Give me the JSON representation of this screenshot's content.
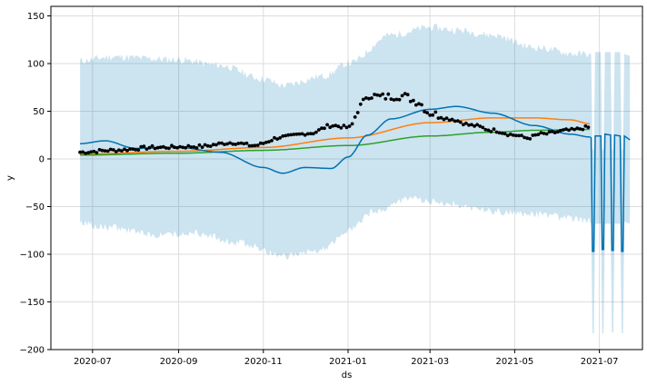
{
  "chart_data": {
    "type": "line",
    "title": "",
    "xlabel": "ds",
    "ylabel": "y",
    "grid": true,
    "legend": "none",
    "x_axis": {
      "start": "2020-06-01",
      "end": "2021-08-01",
      "ticks": [
        {
          "label": "2020-07",
          "date": "2020-07-01"
        },
        {
          "label": "2020-09",
          "date": "2020-09-01"
        },
        {
          "label": "2020-11",
          "date": "2020-11-01"
        },
        {
          "label": "2021-01",
          "date": "2021-01-01"
        },
        {
          "label": "2021-03",
          "date": "2021-03-01"
        },
        {
          "label": "2021-05",
          "date": "2021-05-01"
        },
        {
          "label": "2021-07",
          "date": "2021-07-01"
        }
      ]
    },
    "y_axis": {
      "ylim": [
        -200,
        160
      ],
      "ticks": [
        -200,
        -150,
        -100,
        -50,
        0,
        50,
        100,
        150
      ]
    },
    "colors": {
      "observed": "#000000",
      "yhat": "#0072B2",
      "band": "#0072B2",
      "orange_series": "#ff7f0e",
      "green_series": "#2ca02c",
      "grid": "#dddddd"
    },
    "observed_anchors": [
      {
        "date": "2020-06-22",
        "y": 7
      },
      {
        "date": "2020-07-15",
        "y": 9
      },
      {
        "date": "2020-08-15",
        "y": 12
      },
      {
        "date": "2020-09-15",
        "y": 13
      },
      {
        "date": "2020-10-10",
        "y": 17
      },
      {
        "date": "2020-10-25",
        "y": 14
      },
      {
        "date": "2020-11-15",
        "y": 23
      },
      {
        "date": "2020-12-05",
        "y": 27
      },
      {
        "date": "2020-12-20",
        "y": 35
      },
      {
        "date": "2021-01-02",
        "y": 33
      },
      {
        "date": "2021-01-10",
        "y": 55
      },
      {
        "date": "2021-01-15",
        "y": 67
      },
      {
        "date": "2021-01-25",
        "y": 65
      },
      {
        "date": "2021-02-10",
        "y": 66
      },
      {
        "date": "2021-02-20",
        "y": 60
      },
      {
        "date": "2021-03-01",
        "y": 48
      },
      {
        "date": "2021-03-15",
        "y": 42
      },
      {
        "date": "2021-04-01",
        "y": 35
      },
      {
        "date": "2021-04-15",
        "y": 30
      },
      {
        "date": "2021-05-01",
        "y": 25
      },
      {
        "date": "2021-05-10",
        "y": 22
      },
      {
        "date": "2021-05-20",
        "y": 26
      },
      {
        "date": "2021-06-10",
        "y": 30
      },
      {
        "date": "2021-06-23",
        "y": 33
      }
    ],
    "yhat_anchors": [
      {
        "date": "2020-06-22",
        "y": 16
      },
      {
        "date": "2020-07-10",
        "y": 19
      },
      {
        "date": "2020-08-01",
        "y": 11
      },
      {
        "date": "2020-09-01",
        "y": 12
      },
      {
        "date": "2020-10-01",
        "y": 7
      },
      {
        "date": "2020-11-01",
        "y": -9
      },
      {
        "date": "2020-11-15",
        "y": -15
      },
      {
        "date": "2020-12-01",
        "y": -9
      },
      {
        "date": "2020-12-20",
        "y": -10
      },
      {
        "date": "2021-01-01",
        "y": 2
      },
      {
        "date": "2021-01-15",
        "y": 25
      },
      {
        "date": "2021-02-01",
        "y": 42
      },
      {
        "date": "2021-03-01",
        "y": 52
      },
      {
        "date": "2021-03-20",
        "y": 55
      },
      {
        "date": "2021-04-15",
        "y": 48
      },
      {
        "date": "2021-05-15",
        "y": 35
      },
      {
        "date": "2021-06-10",
        "y": 26
      },
      {
        "date": "2021-06-24",
        "y": 23
      }
    ],
    "forecast_yhat": [
      {
        "date": "2021-06-24",
        "y": 23
      },
      {
        "date": "2021-06-25",
        "y": 22
      },
      {
        "date": "2021-06-26",
        "y": -97
      },
      {
        "date": "2021-06-27",
        "y": -97
      },
      {
        "date": "2021-06-28",
        "y": 24
      },
      {
        "date": "2021-07-02",
        "y": 24
      },
      {
        "date": "2021-07-03",
        "y": -95
      },
      {
        "date": "2021-07-04",
        "y": -95
      },
      {
        "date": "2021-07-05",
        "y": 26
      },
      {
        "date": "2021-07-09",
        "y": 25
      },
      {
        "date": "2021-07-10",
        "y": -96
      },
      {
        "date": "2021-07-11",
        "y": -96
      },
      {
        "date": "2021-07-12",
        "y": 25
      },
      {
        "date": "2021-07-16",
        "y": 24
      },
      {
        "date": "2021-07-17",
        "y": -97
      },
      {
        "date": "2021-07-18",
        "y": -97
      },
      {
        "date": "2021-07-19",
        "y": 24
      },
      {
        "date": "2021-07-23",
        "y": 20
      }
    ],
    "band_upper_anchors": [
      {
        "date": "2020-06-22",
        "y": 103
      },
      {
        "date": "2020-07-15",
        "y": 107
      },
      {
        "date": "2020-09-01",
        "y": 104
      },
      {
        "date": "2020-10-01",
        "y": 98
      },
      {
        "date": "2020-11-01",
        "y": 84
      },
      {
        "date": "2020-11-15",
        "y": 77
      },
      {
        "date": "2020-12-15",
        "y": 87
      },
      {
        "date": "2021-01-01",
        "y": 100
      },
      {
        "date": "2021-02-01",
        "y": 130
      },
      {
        "date": "2021-03-01",
        "y": 138
      },
      {
        "date": "2021-03-20",
        "y": 135
      },
      {
        "date": "2021-04-15",
        "y": 130
      },
      {
        "date": "2021-05-15",
        "y": 117
      },
      {
        "date": "2021-06-15",
        "y": 110
      },
      {
        "date": "2021-06-24",
        "y": 110
      }
    ],
    "band_lower_anchors": [
      {
        "date": "2020-06-22",
        "y": -68
      },
      {
        "date": "2020-07-15",
        "y": -72
      },
      {
        "date": "2020-08-15",
        "y": -80
      },
      {
        "date": "2020-09-15",
        "y": -78
      },
      {
        "date": "2020-10-15",
        "y": -88
      },
      {
        "date": "2020-11-15",
        "y": -102
      },
      {
        "date": "2020-12-15",
        "y": -95
      },
      {
        "date": "2021-01-01",
        "y": -75
      },
      {
        "date": "2021-01-20",
        "y": -55
      },
      {
        "date": "2021-02-15",
        "y": -42
      },
      {
        "date": "2021-03-15",
        "y": -47
      },
      {
        "date": "2021-04-15",
        "y": -55
      },
      {
        "date": "2021-05-15",
        "y": -58
      },
      {
        "date": "2021-06-15",
        "y": -63
      },
      {
        "date": "2021-06-24",
        "y": -65
      }
    ],
    "forecast_band": [
      {
        "date": "2021-06-24",
        "upper": 110,
        "lower": -65
      },
      {
        "date": "2021-06-25",
        "upper": 110,
        "lower": -70
      },
      {
        "date": "2021-06-26",
        "upper": 10,
        "lower": -183
      },
      {
        "date": "2021-06-27",
        "upper": 10,
        "lower": -183
      },
      {
        "date": "2021-06-28",
        "upper": 112,
        "lower": -68
      },
      {
        "date": "2021-07-02",
        "upper": 112,
        "lower": -68
      },
      {
        "date": "2021-07-03",
        "upper": 10,
        "lower": -183
      },
      {
        "date": "2021-07-04",
        "upper": 10,
        "lower": -183
      },
      {
        "date": "2021-07-05",
        "upper": 112,
        "lower": -68
      },
      {
        "date": "2021-07-09",
        "upper": 112,
        "lower": -68
      },
      {
        "date": "2021-07-10",
        "upper": 10,
        "lower": -182
      },
      {
        "date": "2021-07-11",
        "upper": 10,
        "lower": -182
      },
      {
        "date": "2021-07-12",
        "upper": 112,
        "lower": -68
      },
      {
        "date": "2021-07-16",
        "upper": 112,
        "lower": -68
      },
      {
        "date": "2021-07-17",
        "upper": 10,
        "lower": -183
      },
      {
        "date": "2021-07-18",
        "upper": 10,
        "lower": -183
      },
      {
        "date": "2021-07-19",
        "upper": 110,
        "lower": -66
      },
      {
        "date": "2021-07-23",
        "upper": 108,
        "lower": -68
      }
    ],
    "series": [
      {
        "color_key": "orange_series",
        "points": [
          {
            "date": "2020-06-22",
            "y": 5
          },
          {
            "date": "2020-09-01",
            "y": 8
          },
          {
            "date": "2020-11-01",
            "y": 12
          },
          {
            "date": "2021-01-01",
            "y": 22
          },
          {
            "date": "2021-03-01",
            "y": 38
          },
          {
            "date": "2021-04-15",
            "y": 43
          },
          {
            "date": "2021-05-15",
            "y": 43
          },
          {
            "date": "2021-06-10",
            "y": 41
          },
          {
            "date": "2021-06-24",
            "y": 37
          }
        ]
      },
      {
        "color_key": "green_series",
        "points": [
          {
            "date": "2020-06-22",
            "y": 4
          },
          {
            "date": "2020-09-01",
            "y": 6
          },
          {
            "date": "2020-11-01",
            "y": 9
          },
          {
            "date": "2021-01-01",
            "y": 14
          },
          {
            "date": "2021-03-01",
            "y": 24
          },
          {
            "date": "2021-04-15",
            "y": 28
          },
          {
            "date": "2021-05-15",
            "y": 30
          },
          {
            "date": "2021-06-24",
            "y": 31
          }
        ]
      }
    ]
  }
}
